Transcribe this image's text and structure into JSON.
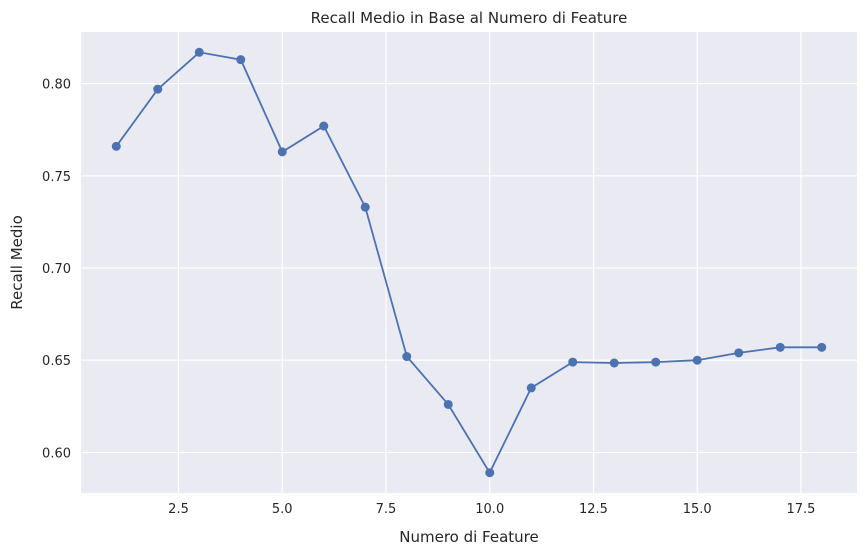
{
  "chart_data": {
    "type": "line",
    "title": "Recall Medio in Base al Numero di Feature",
    "xlabel": "Numero di Feature",
    "ylabel": "Recall Medio",
    "x": [
      1,
      2,
      3,
      4,
      5,
      6,
      7,
      8,
      9,
      10,
      11,
      12,
      13,
      14,
      15,
      16,
      17,
      18
    ],
    "y": [
      0.766,
      0.797,
      0.817,
      0.813,
      0.763,
      0.777,
      0.733,
      0.652,
      0.626,
      0.589,
      0.635,
      0.649,
      0.6485,
      0.649,
      0.65,
      0.654,
      0.657,
      0.657
    ],
    "xlim": [
      0.15,
      18.85
    ],
    "ylim": [
      0.578,
      0.828
    ],
    "xticks": [
      2.5,
      5.0,
      7.5,
      10.0,
      12.5,
      15.0,
      17.5
    ],
    "xtick_labels": [
      "2.5",
      "5.0",
      "7.5",
      "10.0",
      "12.5",
      "15.0",
      "17.5"
    ],
    "yticks": [
      0.6,
      0.65,
      0.7,
      0.75,
      0.8
    ],
    "ytick_labels": [
      "0.60",
      "0.65",
      "0.70",
      "0.75",
      "0.80"
    ],
    "grid": true,
    "line_color": "#4c72b0",
    "plot_background": "#eaeaf2",
    "grid_color": "#ffffff"
  }
}
